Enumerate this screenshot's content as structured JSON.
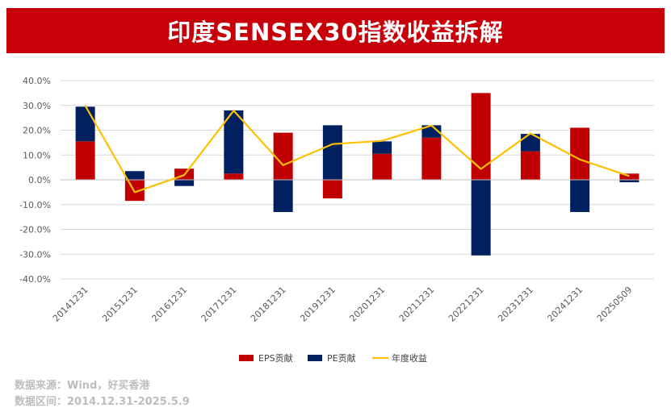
{
  "title": "印度SENSEX30指数收益拆解",
  "chart_data": {
    "type": "bar",
    "stacked": true,
    "categories": [
      "20141231",
      "20151231",
      "20161231",
      "20171231",
      "20181231",
      "20191231",
      "20201231",
      "20211231",
      "20221231",
      "20231231",
      "20241231",
      "20250509"
    ],
    "series": [
      {
        "name": "EPS贡献",
        "type": "bar",
        "color": "#c00000",
        "values": [
          15.5,
          -8.5,
          4.5,
          2.5,
          19.0,
          -7.5,
          10.5,
          17.0,
          35.0,
          11.5,
          21.0,
          2.5
        ]
      },
      {
        "name": "PE贡献",
        "type": "bar",
        "color": "#002060",
        "values": [
          14.0,
          3.5,
          -2.5,
          25.5,
          -13.0,
          22.0,
          5.0,
          5.0,
          -30.5,
          7.0,
          -13.0,
          -1.0
        ]
      },
      {
        "name": "年度收益",
        "type": "line",
        "color": "#ffc000",
        "values": [
          29.9,
          -5.0,
          1.9,
          27.9,
          5.9,
          14.4,
          15.7,
          21.9,
          4.4,
          18.7,
          8.2,
          1.5
        ]
      }
    ],
    "ylim": [
      -40,
      40
    ],
    "yticks": [
      "40.0%",
      "30.0%",
      "20.0%",
      "10.0%",
      "0.0%",
      "-10.0%",
      "-20.0%",
      "-30.0%",
      "-40.0%"
    ],
    "grid": true,
    "legend_position": "bottom"
  },
  "source": {
    "line1": "数据来源：Wind，好买香港",
    "line2": "数据区间：2014.12.31-2025.5.9"
  }
}
